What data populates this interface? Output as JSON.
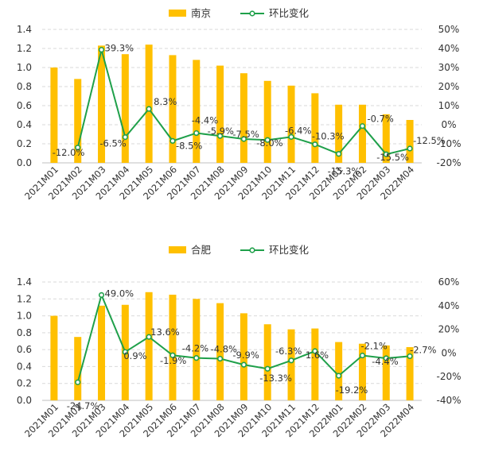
{
  "colors": {
    "bar": "#FFC000",
    "line": "#1FA04A",
    "marker_fill": "#ffffff"
  },
  "chart_data": [
    {
      "type": "bar+line",
      "title": "",
      "legend": [
        {
          "label": "南京",
          "kind": "bar"
        },
        {
          "label": "环比变化",
          "kind": "line"
        }
      ],
      "categories": [
        "2021M01",
        "2021M02",
        "2021M03",
        "2021M04",
        "2021M05",
        "2021M06",
        "2021M07",
        "2021M08",
        "2021M09",
        "2021M10",
        "2021M11",
        "2021M12",
        "2022M01",
        "2022M02",
        "2022M03",
        "2022M04"
      ],
      "series": [
        {
          "name": "南京",
          "axis": "left",
          "type": "bar",
          "values": [
            1.0,
            0.88,
            1.23,
            1.14,
            1.24,
            1.13,
            1.08,
            1.02,
            0.94,
            0.86,
            0.81,
            0.73,
            0.61,
            0.61,
            0.51,
            0.45
          ]
        },
        {
          "name": "环比变化",
          "axis": "right",
          "type": "line",
          "values": [
            null,
            -12.0,
            39.3,
            -6.5,
            8.3,
            -8.5,
            -4.4,
            -5.9,
            -7.5,
            -8.0,
            -6.4,
            -10.3,
            -15.3,
            -0.7,
            -15.5,
            -12.5
          ],
          "labels": [
            "",
            "-12.0%",
            "39.3%",
            "-6.5%",
            "8.3%",
            "-8.5%",
            "-4.4%",
            "-5.9%",
            "-7.5%",
            "-8.0%",
            "-6.4%",
            "-10.3%",
            "-15.3%",
            "-0.7%",
            "-15.5%",
            "-12.5%"
          ]
        }
      ],
      "y_left": {
        "min": 0,
        "max": 1.4,
        "step": 0.2,
        "ticks": [
          "0.0",
          "0.2",
          "0.4",
          "0.6",
          "0.8",
          "1.0",
          "1.2",
          "1.4"
        ]
      },
      "y_right": {
        "min": -20,
        "max": 50,
        "step": 10,
        "ticks": [
          "-20%",
          "-10%",
          "0%",
          "10%",
          "20%",
          "30%",
          "40%",
          "50%"
        ]
      },
      "grid": true
    },
    {
      "type": "bar+line",
      "title": "",
      "legend": [
        {
          "label": "合肥",
          "kind": "bar"
        },
        {
          "label": "环比变化",
          "kind": "line"
        }
      ],
      "categories": [
        "2021M01",
        "2021M02",
        "2021M03",
        "2021M04",
        "2021M05",
        "2021M06",
        "2021M07",
        "2021M08",
        "2021M09",
        "2021M10",
        "2021M11",
        "2021M12",
        "2022M01",
        "2022M02",
        "2022M03",
        "2022M04"
      ],
      "series": [
        {
          "name": "合肥",
          "axis": "left",
          "type": "bar",
          "values": [
            1.0,
            0.75,
            1.12,
            1.13,
            1.28,
            1.25,
            1.2,
            1.15,
            1.03,
            0.9,
            0.84,
            0.85,
            0.69,
            0.67,
            0.65,
            0.63
          ]
        },
        {
          "name": "环比变化",
          "axis": "right",
          "type": "line",
          "values": [
            null,
            -24.7,
            49.0,
            0.9,
            13.6,
            -1.9,
            -4.2,
            -4.8,
            -9.9,
            -13.3,
            -6.3,
            1.6,
            -19.2,
            -2.1,
            -4.4,
            -2.7
          ],
          "labels": [
            "",
            "-24.7%",
            "49.0%",
            "0.9%",
            "13.6%",
            "-1.9%",
            "-4.2%",
            "-4.8%",
            "-9.9%",
            "-13.3%",
            "-6.3%",
            "1.6%",
            "-19.2%",
            "-2.1%",
            "-4.4%",
            "-2.7%"
          ]
        }
      ],
      "y_left": {
        "min": 0,
        "max": 1.4,
        "step": 0.2,
        "ticks": [
          "0.0",
          "0.2",
          "0.4",
          "0.6",
          "0.8",
          "1.0",
          "1.2",
          "1.4"
        ]
      },
      "y_right": {
        "min": -40,
        "max": 60,
        "step": 20,
        "ticks": [
          "-40%",
          "-20%",
          "0%",
          "20%",
          "40%",
          "60%"
        ]
      },
      "grid": true
    }
  ]
}
